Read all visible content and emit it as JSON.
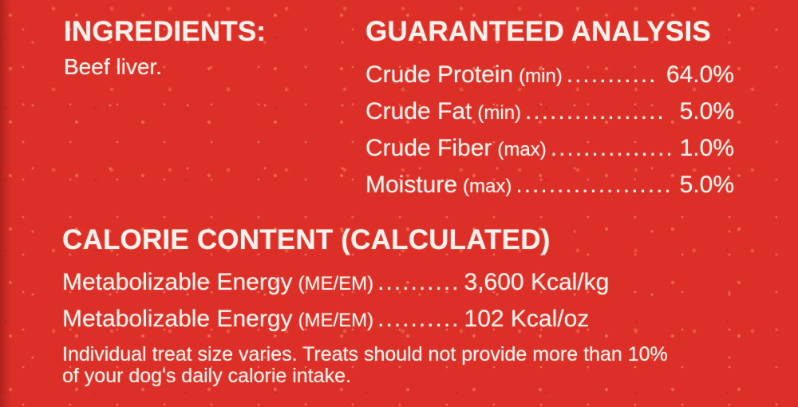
{
  "colors": {
    "background": "#dc2f28",
    "ink": "#f9f1ea"
  },
  "ingredients": {
    "title": "INGREDIENTS:",
    "list": "Beef liver."
  },
  "analysis": {
    "title": "GUARANTEED ANALYSIS",
    "rows": [
      {
        "label": "Crude Protein",
        "qualifier": "(min)",
        "leader": "...........",
        "value": "64.0%"
      },
      {
        "label": "Crude Fat",
        "qualifier": "(min)",
        "leader": ".................",
        "value": "5.0%"
      },
      {
        "label": "Crude Fiber",
        "qualifier": "(max)",
        "leader": "...............",
        "value": "1.0%"
      },
      {
        "label": "Moisture",
        "qualifier": "(max)",
        "leader": "...................",
        "value": "5.0%"
      }
    ]
  },
  "calories": {
    "title": "CALORIE CONTENT (CALCULATED)",
    "rows": [
      {
        "label": "Metabolizable Energy",
        "qualifier": "(ME/EM)",
        "leader": "..........",
        "value": "3,600 Kcal/kg"
      },
      {
        "label": "Metabolizable Energy",
        "qualifier": "(ME/EM)",
        "leader": "..........",
        "value": "102 Kcal/oz"
      }
    ]
  },
  "note": {
    "line1": "Individual treat size varies. Treats should not provide more than 10%",
    "line2": "of your dog's daily calorie intake."
  }
}
